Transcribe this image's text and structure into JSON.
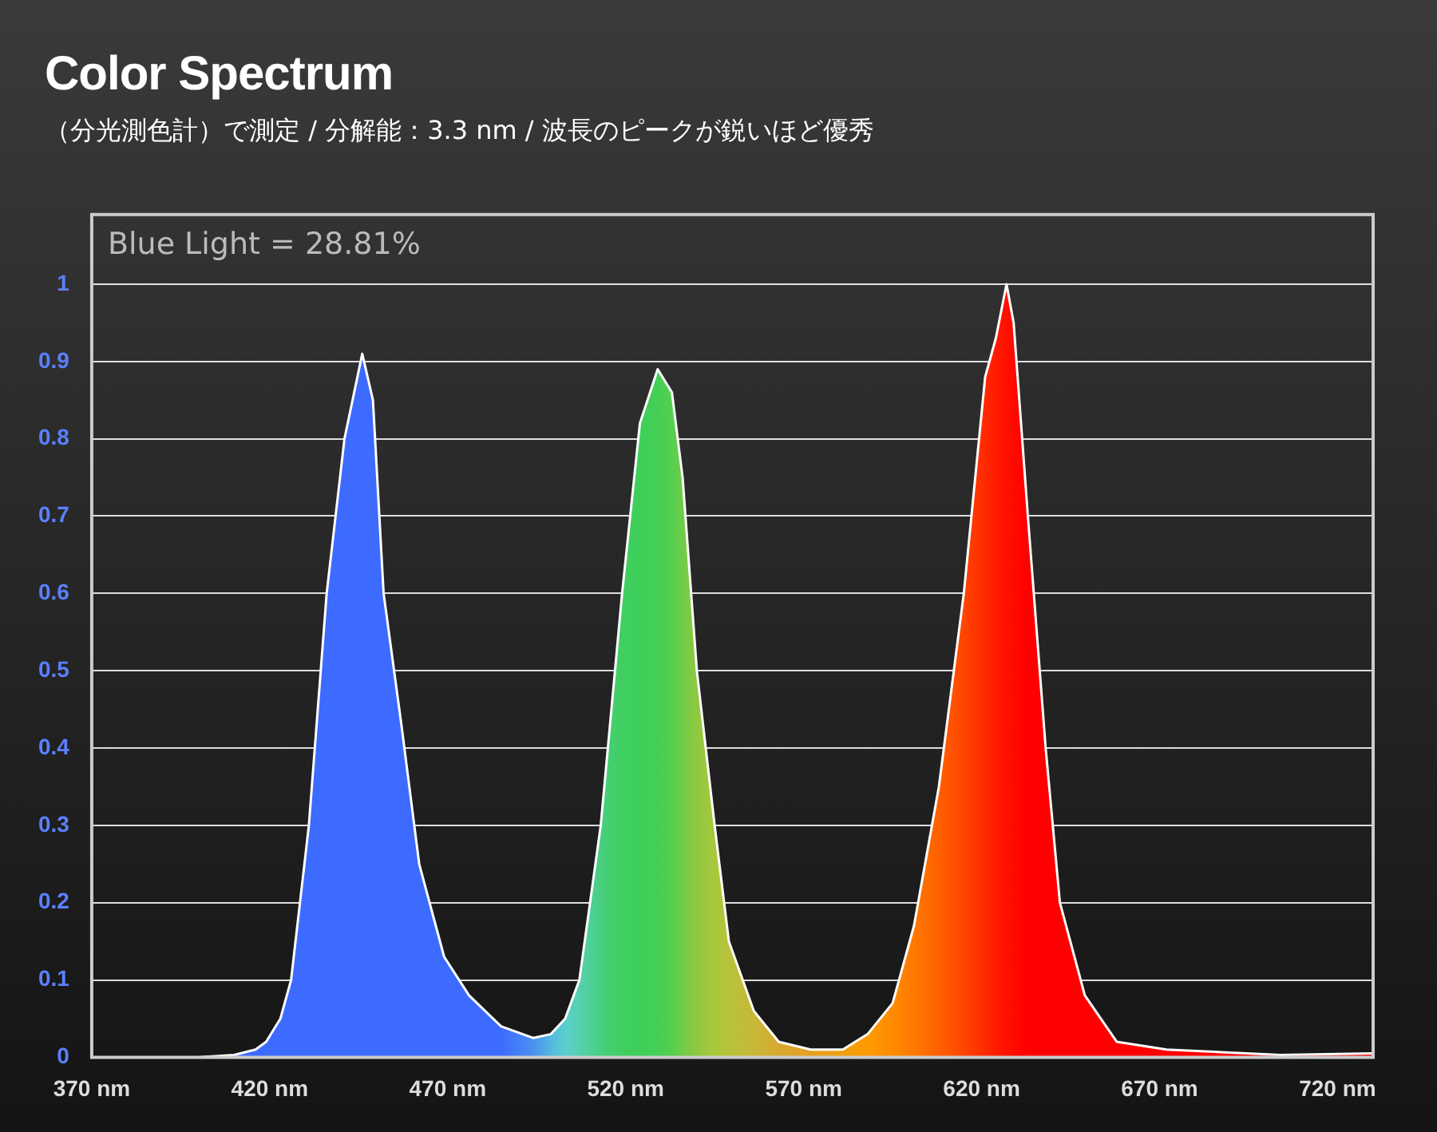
{
  "chart_data": {
    "type": "area",
    "title": "Color Spectrum",
    "subtitle": "（分光測色計）で測定 / 分解能：3.3 nm / 波長のピークが鋭いほど優秀",
    "annotations": [
      "Blue Light = 28.81%"
    ],
    "x": [
      370,
      400,
      410,
      416,
      419,
      423,
      426,
      431,
      436,
      441,
      446,
      449,
      452,
      457,
      462,
      469,
      476,
      485,
      494,
      499,
      503,
      507,
      513,
      519,
      524,
      529,
      533,
      536,
      540,
      545,
      549,
      556,
      563,
      572,
      581,
      588,
      595,
      601,
      608,
      615,
      621,
      624,
      627,
      629,
      633,
      638,
      642,
      649,
      658,
      672,
      704,
      730
    ],
    "series": [
      {
        "color": "#ffffff",
        "values": [
          0,
          0,
          0.003,
          0.01,
          0.02,
          0.05,
          0.1,
          0.3,
          0.6,
          0.8,
          0.91,
          0.85,
          0.6,
          0.43,
          0.25,
          0.13,
          0.08,
          0.04,
          0.025,
          0.03,
          0.05,
          0.1,
          0.3,
          0.6,
          0.82,
          0.89,
          0.86,
          0.75,
          0.5,
          0.3,
          0.15,
          0.06,
          0.02,
          0.01,
          0.01,
          0.03,
          0.07,
          0.17,
          0.35,
          0.6,
          0.88,
          0.93,
          1,
          0.95,
          0.7,
          0.4,
          0.2,
          0.08,
          0.02,
          0.01,
          0.003,
          0.005
        ],
        "colors": [
          "#3d6bff",
          "#3d6bff",
          "#3d6bff",
          "#3d6bff",
          "#3d6bff",
          "#3d6bff",
          "#3d6bff",
          "#3d6bff",
          "#3d6bff",
          "#3d6bff",
          "#3d6bff",
          "#3d6bff",
          "#3d6bff",
          "#3d6bff",
          "#3d6bff",
          "#3d6bff",
          "#3d6bff",
          "#3d6bff",
          "#4a90f0",
          "#55b8e0",
          "#5acfcf",
          "#55d0b0",
          "#48cf80",
          "#40cf60",
          "#3ecf5a",
          "#45cf55",
          "#55cf50",
          "#70cc48",
          "#90c840",
          "#a8c83c",
          "#b8c23a",
          "#c8b838",
          "#d8a830",
          "#e6a020",
          "#f0a010",
          "#ff9a00",
          "#ff8a00",
          "#ff7800",
          "#ff6000",
          "#ff4500",
          "#ff2a00",
          "#ff1a00",
          "#ff1000",
          "#ff0a00",
          "#ff0000",
          "#ff0000",
          "#ff0000",
          "#ff0000",
          "#ff0000",
          "#ff0000",
          "#ff0000",
          "#ff0000"
        ]
      }
    ],
    "xlim": [
      370,
      730
    ],
    "xticks": [
      {
        "value": 370,
        "label": "370 nm"
      },
      {
        "value": 420,
        "label": "420 nm"
      },
      {
        "value": 470,
        "label": "470 nm"
      },
      {
        "value": 520,
        "label": "520 nm"
      },
      {
        "value": 570,
        "label": "570 nm"
      },
      {
        "value": 620,
        "label": "620 nm"
      },
      {
        "value": 670,
        "label": "670 nm"
      },
      {
        "value": 720,
        "label": "720 nm"
      }
    ],
    "ylim": [
      0,
      1.09
    ],
    "yticks": [
      0,
      0.1,
      0.2,
      0.3,
      0.4,
      0.5,
      0.6,
      0.7,
      0.8,
      0.9,
      1
    ],
    "grid": "y",
    "marker": "none",
    "line_style": "solid",
    "legend": false
  }
}
